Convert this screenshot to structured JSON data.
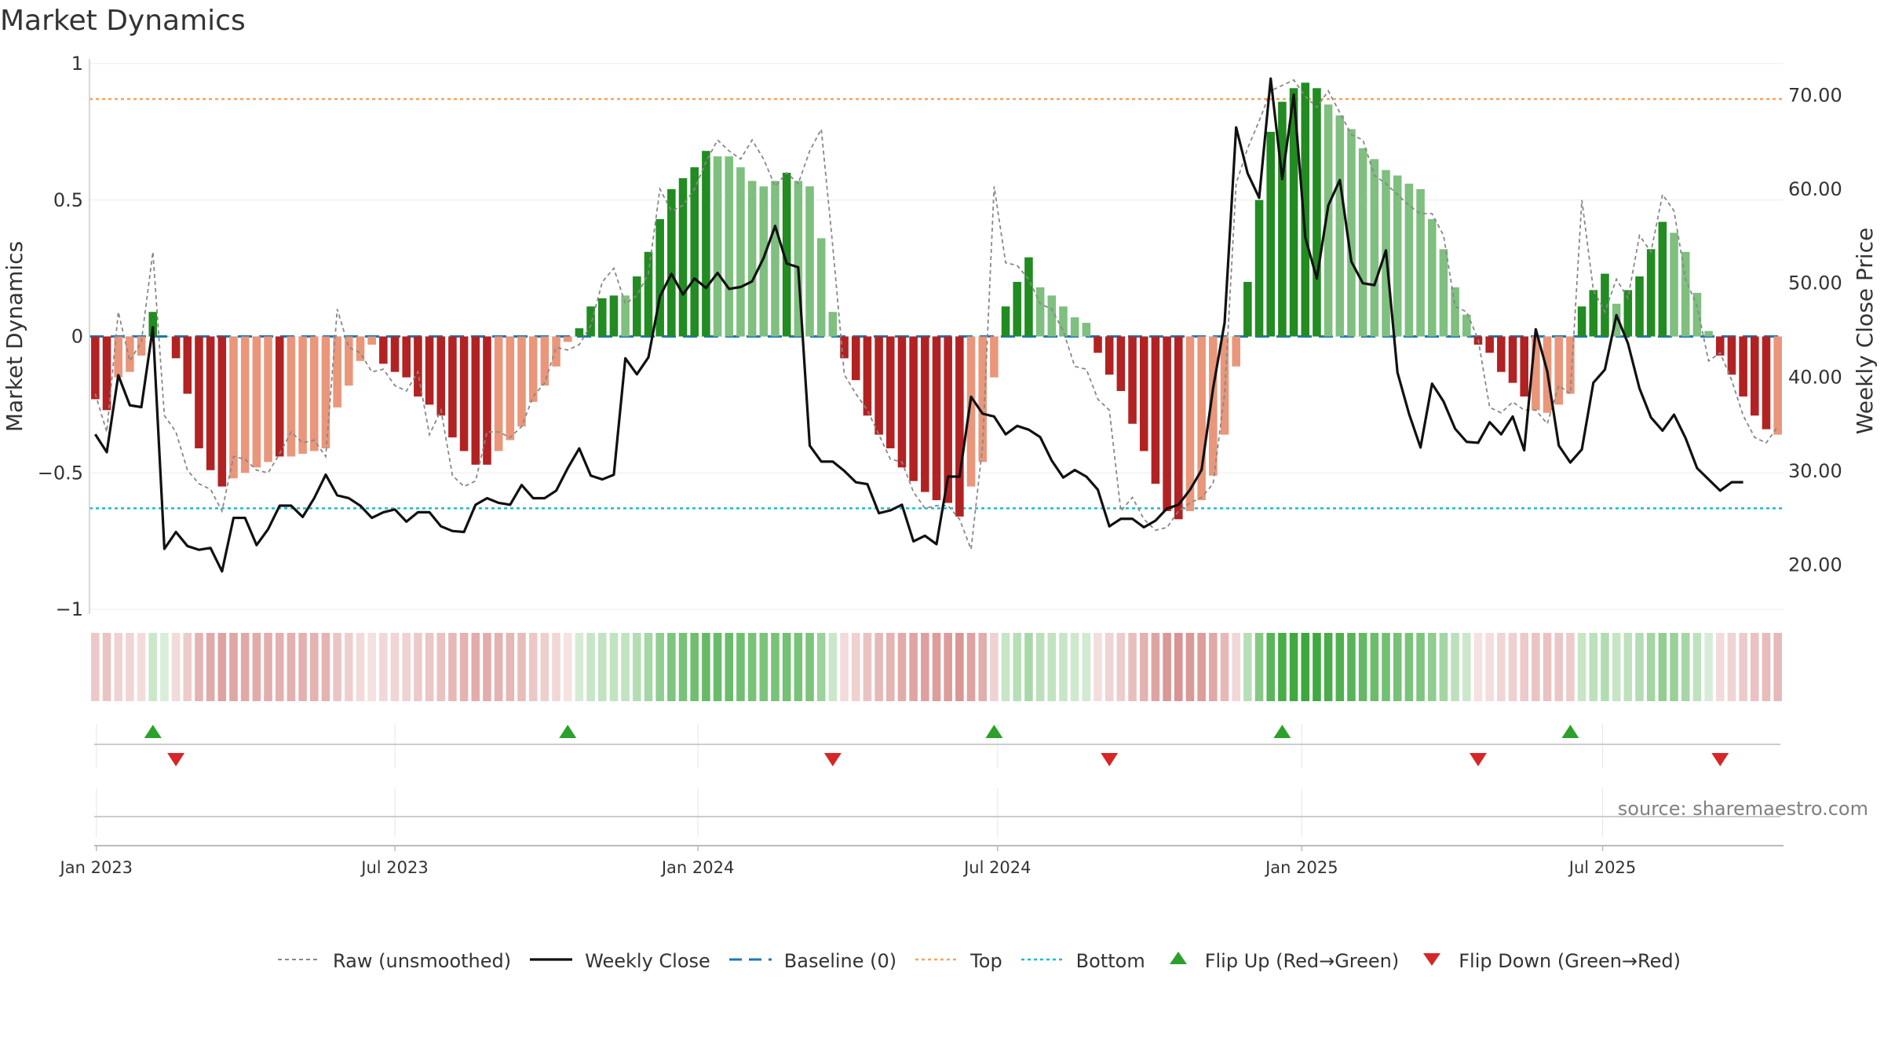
{
  "title": "Market Dynamics",
  "source": "source: sharemaestro.com",
  "colors": {
    "strong_green": "#228b22",
    "weak_green": "#7fbf7f",
    "strong_red": "#b22222",
    "weak_red": "#e9967a",
    "top_line": "#f4a460",
    "bottom_line": "#17becf",
    "baseline": "#1f77b4",
    "close_line": "#111111",
    "raw_line": "#888888",
    "flip_up": "#2ca02c",
    "flip_down": "#d62728"
  },
  "legend": [
    {
      "label": "Raw (unsmoothed)",
      "style": "dotted-gray"
    },
    {
      "label": "Weekly Close",
      "style": "solid-black"
    },
    {
      "label": "Baseline (0)",
      "style": "dashed-blue"
    },
    {
      "label": "Top",
      "style": "dotted-orange"
    },
    {
      "label": "Bottom",
      "style": "dotted-cyan"
    },
    {
      "label": "Flip Up (Red→Green)",
      "style": "triangle-up-green"
    },
    {
      "label": "Flip Down (Green→Red)",
      "style": "triangle-down-red"
    }
  ],
  "chart_data": {
    "type": "bar",
    "title": "Market Dynamics",
    "ylabel": "Market Dynamics",
    "y2label": "Weekly Close Price",
    "ylim": [
      -1,
      1
    ],
    "y2lim": [
      15.26,
      73.4
    ],
    "yticks": [
      "1",
      "0.5",
      "0",
      "−0.5",
      "−1"
    ],
    "yticks_values": [
      1,
      0.5,
      0,
      -0.5,
      -1
    ],
    "y2ticks": [
      "70.00",
      "60.00",
      "50.00",
      "40.00",
      "30.00",
      "20.00"
    ],
    "y2ticks_values": [
      70,
      60,
      50,
      40,
      30,
      20
    ],
    "xticks": [
      "Jan 2023",
      "Jul 2023",
      "Jan 2024",
      "Jul 2024",
      "Jan 2025",
      "Jul 2025"
    ],
    "xticks_week_index": [
      0.6,
      26.5,
      52.8,
      78.8,
      105.2,
      131.3
    ],
    "top_level": 0.87,
    "bottom_level": -0.63,
    "baseline": 0,
    "grid": true,
    "legend_position": "bottom",
    "x_first_week": "2022-12-26",
    "dynamics": [
      -0.23,
      -0.27,
      -0.15,
      -0.13,
      -0.07,
      0.09,
      0,
      -0.08,
      -0.21,
      -0.41,
      -0.49,
      -0.55,
      -0.52,
      -0.5,
      -0.48,
      -0.46,
      -0.44,
      -0.44,
      -0.43,
      -0.42,
      -0.41,
      -0.26,
      -0.18,
      -0.09,
      -0.03,
      -0.1,
      -0.13,
      -0.15,
      -0.22,
      -0.25,
      -0.29,
      -0.37,
      -0.42,
      -0.47,
      -0.47,
      -0.42,
      -0.38,
      -0.33,
      -0.24,
      -0.18,
      -0.11,
      -0.02,
      0.03,
      0.11,
      0.14,
      0.15,
      0.15,
      0.22,
      0.31,
      0.43,
      0.54,
      0.58,
      0.62,
      0.68,
      0.66,
      0.66,
      0.62,
      0.57,
      0.55,
      0.57,
      0.6,
      0.57,
      0.55,
      0.36,
      0.09,
      -0.08,
      -0.16,
      -0.29,
      -0.36,
      -0.41,
      -0.48,
      -0.53,
      -0.57,
      -0.6,
      -0.61,
      -0.66,
      -0.55,
      -0.46,
      -0.15,
      0.11,
      0.2,
      0.29,
      0.18,
      0.15,
      0.11,
      0.07,
      0.05,
      -0.06,
      -0.14,
      -0.2,
      -0.32,
      -0.42,
      -0.54,
      -0.64,
      -0.67,
      -0.64,
      -0.6,
      -0.51,
      -0.36,
      -0.11,
      0.2,
      0.5,
      0.75,
      0.86,
      0.91,
      0.93,
      0.91,
      0.85,
      0.81,
      0.76,
      0.69,
      0.65,
      0.61,
      0.59,
      0.56,
      0.54,
      0.43,
      0.32,
      0.18,
      0.08,
      -0.03,
      -0.06,
      -0.13,
      -0.17,
      -0.22,
      -0.27,
      -0.28,
      -0.25,
      -0.21,
      0.11,
      0.17,
      0.23,
      0.12,
      0.17,
      0.22,
      0.32,
      0.42,
      0.38,
      0.31,
      0.16,
      0.02,
      -0.07,
      -0.14,
      -0.22,
      -0.29,
      -0.34,
      -0.36
    ],
    "strength": [
      "s",
      "s",
      "w",
      "w",
      "w",
      "s",
      "s",
      "s",
      "s",
      "s",
      "s",
      "s",
      "w",
      "w",
      "w",
      "w",
      "s",
      "w",
      "w",
      "w",
      "w",
      "w",
      "w",
      "w",
      "w",
      "s",
      "s",
      "s",
      "s",
      "s",
      "s",
      "s",
      "s",
      "s",
      "s",
      "w",
      "w",
      "w",
      "w",
      "w",
      "w",
      "w",
      "s",
      "s",
      "s",
      "s",
      "w",
      "s",
      "s",
      "s",
      "s",
      "s",
      "s",
      "s",
      "w",
      "w",
      "w",
      "w",
      "w",
      "w",
      "s",
      "w",
      "w",
      "w",
      "w",
      "s",
      "s",
      "s",
      "s",
      "s",
      "s",
      "s",
      "s",
      "s",
      "s",
      "s",
      "w",
      "w",
      "w",
      "s",
      "s",
      "s",
      "w",
      "w",
      "w",
      "w",
      "w",
      "s",
      "s",
      "s",
      "s",
      "s",
      "s",
      "s",
      "s",
      "w",
      "w",
      "w",
      "w",
      "w",
      "s",
      "s",
      "s",
      "s",
      "s",
      "s",
      "s",
      "w",
      "w",
      "w",
      "w",
      "w",
      "w",
      "w",
      "w",
      "w",
      "w",
      "w",
      "w",
      "w",
      "s",
      "s",
      "s",
      "s",
      "s",
      "w",
      "w",
      "w",
      "w",
      "s",
      "s",
      "s",
      "w",
      "s",
      "s",
      "s",
      "s",
      "w",
      "w",
      "w",
      "w",
      "s",
      "s",
      "s",
      "s",
      "s"
    ],
    "raw": [
      -0.21,
      -0.35,
      0.09,
      -0.09,
      -0.02,
      0.31,
      -0.29,
      -0.35,
      -0.49,
      -0.54,
      -0.56,
      -0.64,
      -0.44,
      -0.45,
      -0.49,
      -0.5,
      -0.43,
      -0.35,
      -0.39,
      -0.38,
      -0.44,
      0.1,
      -0.04,
      -0.06,
      -0.13,
      -0.12,
      -0.18,
      -0.2,
      -0.13,
      -0.36,
      -0.27,
      -0.51,
      -0.55,
      -0.53,
      -0.35,
      -0.35,
      -0.37,
      -0.33,
      -0.22,
      -0.17,
      -0.04,
      -0.05,
      -0.03,
      0.04,
      0.2,
      0.25,
      0.12,
      0.15,
      0.23,
      0.54,
      0.46,
      0.48,
      0.54,
      0.64,
      0.72,
      0.68,
      0.65,
      0.72,
      0.65,
      0.55,
      0.6,
      0.56,
      0.68,
      0.76,
      0.33,
      -0.14,
      -0.21,
      -0.27,
      -0.36,
      -0.45,
      -0.46,
      -0.57,
      -0.63,
      -0.62,
      -0.62,
      -0.67,
      -0.78,
      -0.4,
      0.55,
      0.27,
      0.26,
      0.21,
      0.12,
      0.1,
      0.02,
      -0.11,
      -0.12,
      -0.23,
      -0.27,
      -0.64,
      -0.59,
      -0.67,
      -0.71,
      -0.7,
      -0.64,
      -0.61,
      -0.59,
      -0.54,
      -0.21,
      0.56,
      0.69,
      0.79,
      0.9,
      0.92,
      0.94,
      0.88,
      0.84,
      0.9,
      0.82,
      0.74,
      0.72,
      0.59,
      0.56,
      0.52,
      0.48,
      0.45,
      0.45,
      0.37,
      0.11,
      0.09,
      -0.01,
      -0.26,
      -0.28,
      -0.24,
      -0.27,
      -0.27,
      -0.32,
      -0.18,
      -0.21,
      0.5,
      0.17,
      0.09,
      0.21,
      0.14,
      0.37,
      0.31,
      0.52,
      0.46,
      0.21,
      0.11,
      -0.09,
      -0.06,
      -0.16,
      -0.29,
      -0.37,
      -0.39,
      -0.33
    ],
    "close": [
      33.9,
      32.0,
      40.2,
      37.0,
      36.8,
      45.3,
      21.7,
      23.5,
      22.0,
      21.6,
      21.8,
      19.3,
      25.0,
      25.0,
      22.1,
      23.8,
      26.3,
      26.3,
      25.1,
      27.1,
      29.6,
      27.4,
      27.1,
      26.3,
      25.0,
      25.6,
      25.9,
      24.6,
      25.6,
      25.6,
      24.1,
      23.6,
      23.5,
      26.4,
      27.1,
      26.6,
      26.4,
      28.5,
      27.1,
      27.1,
      27.9,
      30.3,
      32.4,
      29.5,
      29.1,
      29.6,
      42.0,
      40.3,
      42.1,
      48.6,
      51.0,
      48.8,
      50.5,
      49.5,
      51.1,
      49.4,
      49.6,
      50.2,
      52.7,
      56.1,
      52.1,
      51.7,
      32.7,
      31.0,
      31.0,
      30.0,
      28.8,
      28.6,
      25.5,
      25.8,
      26.4,
      22.5,
      23.1,
      22.2,
      29.4,
      29.4,
      37.9,
      36.1,
      35.8,
      33.9,
      34.8,
      34.4,
      33.6,
      31.1,
      29.3,
      30.1,
      29.4,
      28.0,
      24.1,
      24.9,
      24.9,
      24.0,
      24.7,
      26.0,
      26.4,
      28.0,
      30.1,
      38.8,
      45.8,
      66.6,
      61.7,
      59.1,
      71.8,
      61.1,
      70.1,
      54.9,
      50.5,
      58.3,
      61.0,
      52.3,
      50.0,
      49.8,
      53.5,
      40.5,
      36.1,
      32.5,
      39.3,
      37.4,
      34.5,
      33.1,
      33.0,
      35.2,
      33.9,
      35.8,
      32.2,
      45.1,
      40.6,
      32.7,
      30.9,
      32.3,
      39.4,
      40.8,
      46.6,
      43.6,
      38.8,
      35.7,
      34.3,
      36.0,
      33.5,
      30.3,
      29.1,
      27.9,
      28.8,
      28.8
    ],
    "flip_up_week": [
      5,
      41,
      78,
      103,
      128
    ],
    "flip_down_week": [
      7,
      64,
      88,
      120,
      141
    ]
  }
}
